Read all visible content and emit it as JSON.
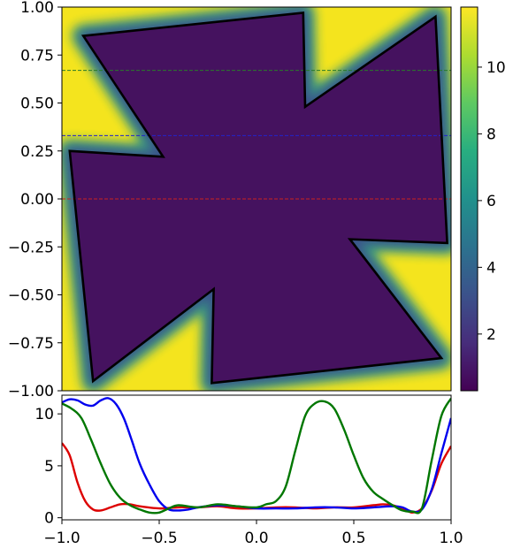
{
  "chart_data": [
    {
      "type": "heatmap",
      "title": "",
      "xlabel": "",
      "ylabel": "",
      "xlim": [
        -1.0,
        1.0
      ],
      "ylim": [
        -1.0,
        1.0
      ],
      "y_ticks": [
        1.0,
        0.75,
        0.5,
        0.25,
        0.0,
        -0.25,
        -0.5,
        -0.75,
        -1.0
      ],
      "y_tick_labels": [
        "1.00",
        "0.75",
        "0.50",
        "0.25",
        "0.00",
        "−0.25",
        "−0.50",
        "−0.75",
        "−1.00"
      ],
      "colormap": "viridis",
      "colorbar": {
        "range": [
          0.3,
          11.8
        ],
        "ticks": [
          2,
          4,
          6,
          8,
          10
        ],
        "tick_labels": [
          "2",
          "4",
          "6",
          "8",
          "10"
        ]
      },
      "outline_polygon": [
        [
          -0.89,
          0.85
        ],
        [
          0.24,
          0.97
        ],
        [
          0.25,
          0.48
        ],
        [
          0.92,
          0.95
        ],
        [
          0.98,
          -0.23
        ],
        [
          0.48,
          -0.21
        ],
        [
          0.95,
          -0.83
        ],
        [
          -0.23,
          -0.96
        ],
        [
          -0.22,
          -0.47
        ],
        [
          -0.84,
          -0.95
        ],
        [
          -0.96,
          0.25
        ],
        [
          -0.48,
          0.22
        ]
      ],
      "reference_lines": [
        {
          "y": 0.67,
          "color": "#2a7a2a"
        },
        {
          "y": 0.33,
          "color": "#2222cc"
        },
        {
          "y": 0.0,
          "color": "#cc2222"
        }
      ],
      "grid": false
    },
    {
      "type": "line",
      "title": "",
      "xlabel": "",
      "ylabel": "",
      "xlim": [
        -1.0,
        1.0
      ],
      "ylim": [
        -0.2,
        11.8
      ],
      "x_ticks": [
        -1.0,
        -0.5,
        0.0,
        0.5,
        1.0
      ],
      "x_tick_labels": [
        "−1.0",
        "−0.5",
        "0.0",
        "0.5",
        "1.0"
      ],
      "y_ticks": [
        0,
        5,
        10
      ],
      "y_tick_labels": [
        "0",
        "5",
        "10"
      ],
      "grid": false,
      "series": [
        {
          "color": "#dd0000",
          "x": [
            -1.0,
            -0.96,
            -0.92,
            -0.88,
            -0.84,
            -0.8,
            -0.75,
            -0.7,
            -0.65,
            -0.6,
            -0.5,
            -0.4,
            -0.3,
            -0.2,
            -0.1,
            0.0,
            0.1,
            0.2,
            0.3,
            0.4,
            0.5,
            0.6,
            0.65,
            0.7,
            0.75,
            0.8,
            0.85,
            0.9,
            0.95,
            1.0
          ],
          "y": [
            7.2,
            6.0,
            3.4,
            1.6,
            0.8,
            0.7,
            1.0,
            1.3,
            1.3,
            1.1,
            0.9,
            1.0,
            1.0,
            1.1,
            0.9,
            0.9,
            1.0,
            1.0,
            0.9,
            1.0,
            1.0,
            1.2,
            1.3,
            1.2,
            0.9,
            0.5,
            0.9,
            2.6,
            5.2,
            6.9
          ]
        },
        {
          "color": "#0000ee",
          "x": [
            -1.0,
            -0.96,
            -0.92,
            -0.88,
            -0.84,
            -0.8,
            -0.76,
            -0.72,
            -0.68,
            -0.64,
            -0.6,
            -0.55,
            -0.5,
            -0.45,
            -0.4,
            -0.35,
            -0.3,
            -0.2,
            -0.1,
            0.0,
            0.1,
            0.2,
            0.3,
            0.4,
            0.5,
            0.6,
            0.7,
            0.75,
            0.8,
            0.85,
            0.9,
            0.95,
            1.0
          ],
          "y": [
            11.1,
            11.4,
            11.3,
            10.9,
            10.8,
            11.3,
            11.5,
            10.9,
            9.5,
            7.4,
            5.2,
            3.2,
            1.6,
            0.8,
            0.7,
            0.8,
            1.0,
            1.2,
            1.1,
            0.9,
            0.9,
            0.9,
            1.0,
            1.0,
            0.9,
            1.0,
            1.1,
            1.0,
            0.6,
            0.8,
            2.7,
            6.2,
            9.6
          ]
        },
        {
          "color": "#007700",
          "x": [
            -1.0,
            -0.95,
            -0.9,
            -0.85,
            -0.8,
            -0.75,
            -0.7,
            -0.65,
            -0.6,
            -0.55,
            -0.5,
            -0.45,
            -0.4,
            -0.3,
            -0.2,
            -0.1,
            0.0,
            0.05,
            0.1,
            0.15,
            0.2,
            0.25,
            0.3,
            0.35,
            0.4,
            0.45,
            0.5,
            0.55,
            0.6,
            0.65,
            0.7,
            0.75,
            0.8,
            0.85,
            0.9,
            0.95,
            1.0
          ],
          "y": [
            11.0,
            10.5,
            9.6,
            7.5,
            5.2,
            3.2,
            1.9,
            1.2,
            0.8,
            0.5,
            0.5,
            0.9,
            1.2,
            1.0,
            1.3,
            1.1,
            1.0,
            1.3,
            1.6,
            3.0,
            6.5,
            9.8,
            11.0,
            11.2,
            10.5,
            8.5,
            6.0,
            3.8,
            2.5,
            1.8,
            1.2,
            0.7,
            0.6,
            0.9,
            5.5,
            9.8,
            11.5
          ]
        }
      ]
    }
  ]
}
